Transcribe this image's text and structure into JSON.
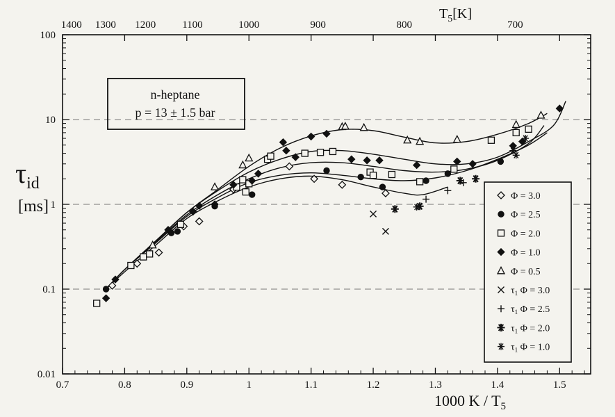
{
  "chart_data": {
    "type": "scatter",
    "xlabel": "1000 K / T",
    "xlabel_sub": "5",
    "ylabel_main": "τ",
    "ylabel_sub": "id",
    "ylabel_unit": "[ms]",
    "top_axis_label": "T",
    "top_axis_label_sub": "5",
    "top_axis_unit": "[K]",
    "xlim": [
      0.7,
      1.55
    ],
    "ylim": [
      0.01,
      100
    ],
    "y_scale": "log",
    "x_ticks": [
      0.7,
      0.8,
      0.9,
      1.0,
      1.1,
      1.2,
      1.3,
      1.4,
      1.5
    ],
    "x_tick_labels": [
      "0.7",
      "0.8",
      "0.9",
      "1",
      "1.1",
      "1.2",
      "1.3",
      "1.4",
      "1.5"
    ],
    "y_ticks": [
      0.01,
      0.1,
      1,
      10,
      100
    ],
    "y_tick_labels": [
      "0.01",
      "0.1",
      "1",
      "10",
      "100"
    ],
    "top_ticks_K": [
      1400,
      1300,
      1200,
      1100,
      1000,
      900,
      800,
      700
    ],
    "top_tick_labels": [
      "1400",
      "1300",
      "1200",
      "1100",
      "1000",
      "900",
      "800",
      "700"
    ],
    "dashed_gridlines_y": [
      0.1,
      1,
      10
    ],
    "annotation": {
      "line1": "n-heptane",
      "line2": "p = 13 ± 1.5 bar",
      "position": "upper-left"
    },
    "legend_position": "lower-right",
    "series": [
      {
        "name": "Φ = 3.0",
        "prefix": "",
        "marker": "diamond-open",
        "points": [
          [
            0.78,
            0.11
          ],
          [
            0.82,
            0.2
          ],
          [
            0.855,
            0.27
          ],
          [
            0.895,
            0.55
          ],
          [
            0.92,
            0.63
          ],
          [
            0.975,
            1.5
          ],
          [
            1.065,
            2.8
          ],
          [
            1.105,
            2.0
          ],
          [
            1.15,
            1.7
          ],
          [
            1.22,
            1.35
          ]
        ]
      },
      {
        "name": "Φ = 2.5",
        "prefix": "",
        "marker": "circle-filled",
        "points": [
          [
            0.77,
            0.1
          ],
          [
            0.875,
            0.46
          ],
          [
            0.885,
            0.48
          ],
          [
            0.945,
            0.95
          ],
          [
            1.005,
            1.3
          ],
          [
            1.125,
            2.5
          ],
          [
            1.18,
            2.1
          ],
          [
            1.215,
            1.6
          ],
          [
            1.285,
            1.9
          ],
          [
            1.32,
            2.3
          ],
          [
            1.405,
            3.2
          ]
        ]
      },
      {
        "name": "Φ = 2.0",
        "prefix": "",
        "marker": "square-open",
        "points": [
          [
            0.755,
            0.068
          ],
          [
            0.81,
            0.19
          ],
          [
            0.83,
            0.24
          ],
          [
            0.84,
            0.26
          ],
          [
            0.89,
            0.58
          ],
          [
            0.98,
            1.6
          ],
          [
            0.99,
            1.95
          ],
          [
            0.995,
            1.4
          ],
          [
            1.0,
            1.75
          ],
          [
            1.03,
            3.4
          ],
          [
            1.035,
            3.7
          ],
          [
            1.09,
            4.0
          ],
          [
            1.115,
            4.1
          ],
          [
            1.135,
            4.2
          ],
          [
            1.195,
            2.4
          ],
          [
            1.2,
            2.2
          ],
          [
            1.23,
            2.25
          ],
          [
            1.275,
            1.85
          ],
          [
            1.33,
            2.6
          ],
          [
            1.39,
            5.7
          ],
          [
            1.43,
            7.0
          ],
          [
            1.45,
            7.7
          ]
        ]
      },
      {
        "name": "Φ = 1.0",
        "prefix": "",
        "marker": "diamond-filled",
        "points": [
          [
            0.77,
            0.078
          ],
          [
            0.785,
            0.13
          ],
          [
            0.87,
            0.5
          ],
          [
            0.91,
            0.82
          ],
          [
            0.92,
            0.96
          ],
          [
            0.945,
            1.0
          ],
          [
            0.975,
            1.7
          ],
          [
            1.005,
            1.9
          ],
          [
            1.015,
            2.3
          ],
          [
            1.055,
            5.4
          ],
          [
            1.06,
            4.3
          ],
          [
            1.075,
            3.6
          ],
          [
            1.1,
            6.3
          ],
          [
            1.125,
            6.8
          ],
          [
            1.165,
            3.4
          ],
          [
            1.19,
            3.3
          ],
          [
            1.21,
            3.3
          ],
          [
            1.27,
            2.9
          ],
          [
            1.335,
            3.2
          ],
          [
            1.36,
            3.0
          ],
          [
            1.425,
            4.9
          ],
          [
            1.44,
            5.5
          ],
          [
            1.5,
            13.5
          ]
        ]
      },
      {
        "name": "Φ = 0.5",
        "prefix": "",
        "marker": "triangle-open",
        "points": [
          [
            0.845,
            0.33
          ],
          [
            0.945,
            1.6
          ],
          [
            0.99,
            2.9
          ],
          [
            1.0,
            3.5
          ],
          [
            1.15,
            8.2
          ],
          [
            1.155,
            8.3
          ],
          [
            1.185,
            8.0
          ],
          [
            1.255,
            5.7
          ],
          [
            1.275,
            5.5
          ],
          [
            1.335,
            5.8
          ],
          [
            1.43,
            8.7
          ],
          [
            1.47,
            11.2
          ]
        ]
      },
      {
        "name": "Φ = 3.0",
        "prefix": "τ",
        "prefix_sub": "1",
        "marker": "x",
        "points": [
          [
            1.2,
            0.77
          ],
          [
            1.22,
            0.48
          ]
        ]
      },
      {
        "name": "Φ = 2.5",
        "prefix": "τ",
        "prefix_sub": "1",
        "marker": "plus",
        "points": [
          [
            1.285,
            1.15
          ],
          [
            1.32,
            1.45
          ],
          [
            1.345,
            1.8
          ]
        ]
      },
      {
        "name": "Φ = 2.0",
        "prefix": "τ",
        "prefix_sub": "1",
        "marker": "asterisk-large",
        "points": [
          [
            1.235,
            0.88
          ],
          [
            1.275,
            0.95
          ],
          [
            1.34,
            1.9
          ],
          [
            1.365,
            2.0
          ]
        ]
      },
      {
        "name": "Φ = 1.0",
        "prefix": "τ",
        "prefix_sub": "1",
        "marker": "asterisk",
        "points": [
          [
            1.27,
            0.93
          ],
          [
            1.425,
            4.3
          ],
          [
            1.43,
            3.8
          ],
          [
            1.445,
            6.0
          ]
        ]
      }
    ],
    "fit_curves": [
      {
        "points": [
          [
            0.77,
            0.1
          ],
          [
            0.8,
            0.17
          ],
          [
            0.85,
            0.37
          ],
          [
            0.9,
            0.8
          ],
          [
            0.95,
            1.5
          ],
          [
            1.0,
            2.8
          ],
          [
            1.05,
            4.6
          ],
          [
            1.1,
            6.4
          ],
          [
            1.15,
            7.6
          ],
          [
            1.2,
            7.4
          ],
          [
            1.25,
            6.2
          ],
          [
            1.3,
            5.3
          ],
          [
            1.35,
            5.5
          ],
          [
            1.4,
            6.7
          ],
          [
            1.45,
            9.0
          ],
          [
            1.48,
            11.8
          ]
        ]
      },
      {
        "points": [
          [
            0.77,
            0.1
          ],
          [
            0.8,
            0.17
          ],
          [
            0.85,
            0.37
          ],
          [
            0.9,
            0.8
          ],
          [
            0.95,
            1.45
          ],
          [
            1.0,
            2.4
          ],
          [
            1.05,
            3.4
          ],
          [
            1.1,
            4.2
          ],
          [
            1.15,
            4.3
          ],
          [
            1.2,
            3.9
          ],
          [
            1.25,
            3.4
          ],
          [
            1.3,
            3.0
          ],
          [
            1.35,
            3.0
          ],
          [
            1.4,
            3.6
          ],
          [
            1.45,
            5.5
          ],
          [
            1.49,
            8.5
          ],
          [
            1.51,
            16.5
          ]
        ]
      },
      {
        "points": [
          [
            0.77,
            0.1
          ],
          [
            0.8,
            0.17
          ],
          [
            0.85,
            0.36
          ],
          [
            0.9,
            0.75
          ],
          [
            0.95,
            1.3
          ],
          [
            1.0,
            2.0
          ],
          [
            1.05,
            2.7
          ],
          [
            1.1,
            3.1
          ],
          [
            1.15,
            3.1
          ],
          [
            1.2,
            2.8
          ],
          [
            1.25,
            2.5
          ],
          [
            1.3,
            2.4
          ],
          [
            1.35,
            2.6
          ],
          [
            1.4,
            3.3
          ],
          [
            1.45,
            5.2
          ],
          [
            1.475,
            8.5
          ]
        ]
      },
      {
        "points": [
          [
            0.77,
            0.1
          ],
          [
            0.8,
            0.17
          ],
          [
            0.85,
            0.35
          ],
          [
            0.9,
            0.72
          ],
          [
            0.95,
            1.2
          ],
          [
            1.0,
            1.8
          ],
          [
            1.05,
            2.2
          ],
          [
            1.1,
            2.35
          ],
          [
            1.15,
            2.2
          ],
          [
            1.2,
            2.0
          ],
          [
            1.25,
            1.9
          ],
          [
            1.3,
            2.05
          ],
          [
            1.35,
            2.5
          ],
          [
            1.4,
            3.4
          ],
          [
            1.45,
            5.0
          ],
          [
            1.48,
            7.0
          ]
        ]
      },
      {
        "points": [
          [
            0.77,
            0.1
          ],
          [
            0.8,
            0.16
          ],
          [
            0.85,
            0.33
          ],
          [
            0.9,
            0.68
          ],
          [
            0.95,
            1.1
          ],
          [
            1.0,
            1.6
          ],
          [
            1.05,
            2.0
          ],
          [
            1.1,
            2.15
          ],
          [
            1.15,
            1.95
          ],
          [
            1.2,
            1.6
          ],
          [
            1.25,
            1.35
          ],
          [
            1.28,
            1.3
          ],
          [
            1.32,
            1.6
          ]
        ]
      }
    ]
  }
}
